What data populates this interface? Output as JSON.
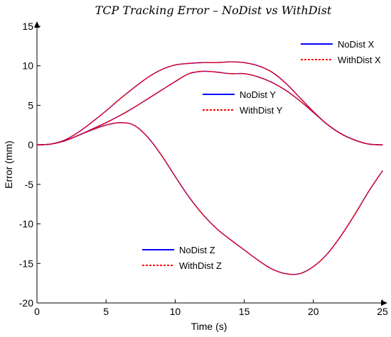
{
  "chart_data": {
    "type": "line",
    "title": "TCP Tracking Error – NoDist vs WithDist",
    "xlabel": "Time (s)",
    "ylabel": "Error (mm)",
    "xlim": [
      0,
      25
    ],
    "ylim": [
      -20,
      15
    ],
    "xticks": [
      0,
      5,
      10,
      15,
      20,
      25
    ],
    "yticks": [
      -20,
      -15,
      -10,
      -5,
      0,
      5,
      10,
      15
    ],
    "grid": false,
    "colors": {
      "nodist": "#0000ff",
      "withdist": "#ff0000"
    },
    "series": [
      {
        "name": "NoDist X",
        "style": "solid",
        "color": "#0000ff",
        "x": [
          0,
          1,
          2,
          3,
          4,
          5,
          6,
          7,
          8,
          9,
          10,
          11,
          12,
          13,
          14,
          15,
          16,
          17,
          18,
          19,
          20,
          21,
          22,
          23,
          24,
          25
        ],
        "y": [
          0,
          0.1,
          0.6,
          1.6,
          2.9,
          4.3,
          5.8,
          7.2,
          8.5,
          9.5,
          10.1,
          10.3,
          10.4,
          10.4,
          10.5,
          10.4,
          10.0,
          9.2,
          7.8,
          6.0,
          4.2,
          2.6,
          1.4,
          0.6,
          0.1,
          0
        ]
      },
      {
        "name": "WithDist X",
        "style": "dashed",
        "color": "#ff0000",
        "x": [
          0,
          1,
          2,
          3,
          4,
          5,
          6,
          7,
          8,
          9,
          10,
          11,
          12,
          13,
          14,
          15,
          16,
          17,
          18,
          19,
          20,
          21,
          22,
          23,
          24,
          25
        ],
        "y": [
          0,
          0.1,
          0.6,
          1.6,
          2.9,
          4.3,
          5.8,
          7.2,
          8.5,
          9.5,
          10.1,
          10.3,
          10.4,
          10.4,
          10.5,
          10.4,
          10.0,
          9.2,
          7.8,
          6.0,
          4.2,
          2.6,
          1.4,
          0.6,
          0.1,
          0
        ]
      },
      {
        "name": "NoDist Y",
        "style": "solid",
        "color": "#0000ff",
        "x": [
          0,
          1,
          2,
          3,
          4,
          5,
          6,
          7,
          8,
          9,
          10,
          11,
          12,
          13,
          14,
          15,
          16,
          17,
          18,
          19,
          20,
          21,
          22,
          23,
          24,
          25
        ],
        "y": [
          0,
          0.1,
          0.5,
          1.2,
          2.0,
          2.8,
          3.7,
          4.7,
          5.8,
          6.9,
          8.0,
          9.0,
          9.3,
          9.2,
          9.0,
          9.0,
          8.6,
          7.9,
          6.9,
          5.6,
          4.1,
          2.6,
          1.4,
          0.6,
          0.1,
          0
        ]
      },
      {
        "name": "WithDist Y",
        "style": "dashed",
        "color": "#ff0000",
        "x": [
          0,
          1,
          2,
          3,
          4,
          5,
          6,
          7,
          8,
          9,
          10,
          11,
          12,
          13,
          14,
          15,
          16,
          17,
          18,
          19,
          20,
          21,
          22,
          23,
          24,
          25
        ],
        "y": [
          0,
          0.1,
          0.5,
          1.2,
          2.0,
          2.8,
          3.7,
          4.7,
          5.8,
          6.9,
          8.0,
          9.0,
          9.3,
          9.2,
          9.0,
          9.0,
          8.6,
          7.9,
          6.9,
          5.6,
          4.1,
          2.6,
          1.4,
          0.6,
          0.1,
          0
        ]
      },
      {
        "name": "NoDist Z",
        "style": "solid",
        "color": "#0000ff",
        "x": [
          0,
          1,
          2,
          3,
          4,
          5,
          6,
          7,
          8,
          9,
          10,
          11,
          12,
          13,
          14,
          15,
          16,
          17,
          18,
          19,
          20,
          21,
          22,
          23,
          24,
          25
        ],
        "y": [
          0,
          0.1,
          0.5,
          1.2,
          1.9,
          2.5,
          2.8,
          2.5,
          1.0,
          -1.3,
          -4.0,
          -6.6,
          -8.8,
          -10.6,
          -12.0,
          -13.3,
          -14.6,
          -15.7,
          -16.3,
          -16.3,
          -15.4,
          -13.8,
          -11.5,
          -8.8,
          -5.9,
          -3.3
        ]
      },
      {
        "name": "WithDist Z",
        "style": "dashed",
        "color": "#ff0000",
        "x": [
          0,
          1,
          2,
          3,
          4,
          5,
          6,
          7,
          8,
          9,
          10,
          11,
          12,
          13,
          14,
          15,
          16,
          17,
          18,
          19,
          20,
          21,
          22,
          23,
          24,
          25
        ],
        "y": [
          0,
          0.1,
          0.5,
          1.2,
          1.9,
          2.5,
          2.8,
          2.5,
          1.0,
          -1.3,
          -4.0,
          -6.6,
          -8.8,
          -10.6,
          -12.0,
          -13.3,
          -14.6,
          -15.7,
          -16.3,
          -16.3,
          -15.4,
          -13.8,
          -11.5,
          -8.8,
          -5.9,
          -3.3
        ]
      }
    ],
    "legends": [
      {
        "id": "x",
        "placement": "top-right",
        "entries": [
          "NoDist X",
          "WithDist X"
        ]
      },
      {
        "id": "y",
        "placement": "center",
        "entries": [
          "NoDist Y",
          "WithDist Y"
        ]
      },
      {
        "id": "z",
        "placement": "bottom-center",
        "entries": [
          "NoDist Z",
          "WithDist Z"
        ]
      }
    ]
  }
}
